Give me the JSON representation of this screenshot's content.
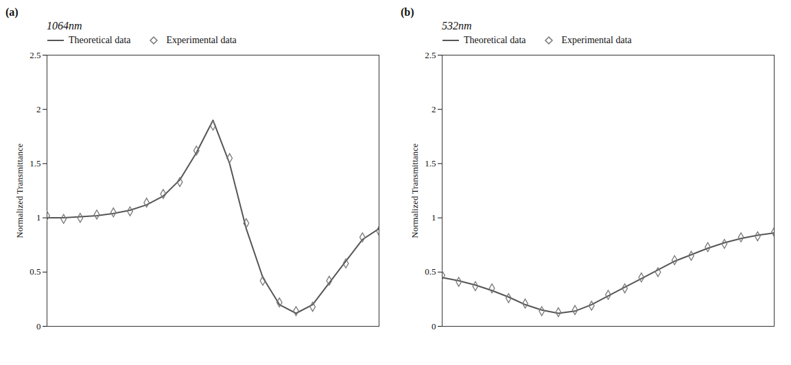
{
  "chart_data": [
    {
      "type": "line",
      "panel": "(a)",
      "title": "1064nm",
      "ylabel": "Normalized Transmittance",
      "x": [
        0,
        0.5,
        1,
        1.5,
        2,
        2.5,
        3,
        3.5,
        4,
        4.5,
        5,
        5.5,
        6,
        6.5,
        7,
        7.5,
        8,
        8.5,
        9,
        9.5,
        10
      ],
      "series": [
        {
          "name": "Theoretical data",
          "color": "#555555",
          "type": "line",
          "line_style": "solid",
          "values": [
            1,
            1,
            1.01,
            1.02,
            1.04,
            1.07,
            1.12,
            1.2,
            1.35,
            1.6,
            1.9,
            1.5,
            0.9,
            0.45,
            0.2,
            0.12,
            0.2,
            0.4,
            0.6,
            0.8,
            0.9
          ]
        },
        {
          "name": "Experimental data",
          "color": "#777777",
          "type": "scatter",
          "marker": "diamond",
          "values": [
            1.02,
            0.99,
            1.0,
            1.03,
            1.05,
            1.06,
            1.14,
            1.22,
            1.33,
            1.62,
            1.85,
            1.55,
            0.95,
            0.42,
            0.22,
            0.14,
            0.18,
            0.42,
            0.58,
            0.82,
            0.88
          ]
        }
      ],
      "xlim": [
        0,
        10
      ],
      "ylim": [
        0,
        2.5
      ],
      "yticks": [
        0,
        0.5,
        1,
        1.5,
        2,
        2.5
      ],
      "tick_labels": "y",
      "legend": "top"
    },
    {
      "type": "line",
      "panel": "(b)",
      "title": "532nm",
      "ylabel": "Normalized Transmittance",
      "x": [
        0,
        0.5,
        1,
        1.5,
        2,
        2.5,
        3,
        3.5,
        4,
        4.5,
        5,
        5.5,
        6,
        6.5,
        7,
        7.5,
        8,
        8.5,
        9,
        9.5,
        10
      ],
      "series": [
        {
          "name": "Theoretical data",
          "color": "#555555",
          "type": "line",
          "line_style": "solid",
          "values": [
            0.45,
            0.42,
            0.38,
            0.33,
            0.27,
            0.2,
            0.15,
            0.12,
            0.14,
            0.2,
            0.28,
            0.36,
            0.44,
            0.52,
            0.6,
            0.66,
            0.72,
            0.77,
            0.81,
            0.84,
            0.86
          ]
        },
        {
          "name": "Experimental data",
          "color": "#777777",
          "type": "scatter",
          "marker": "diamond",
          "values": [
            0.47,
            0.41,
            0.37,
            0.35,
            0.26,
            0.21,
            0.14,
            0.13,
            0.15,
            0.19,
            0.29,
            0.35,
            0.45,
            0.5,
            0.61,
            0.65,
            0.73,
            0.76,
            0.82,
            0.83,
            0.87
          ]
        }
      ],
      "xlim": [
        0,
        10
      ],
      "ylim": [
        0,
        2.5
      ],
      "yticks": [
        0,
        0.5,
        1,
        1.5,
        2,
        2.5
      ],
      "tick_labels": "y",
      "legend": "top"
    }
  ]
}
